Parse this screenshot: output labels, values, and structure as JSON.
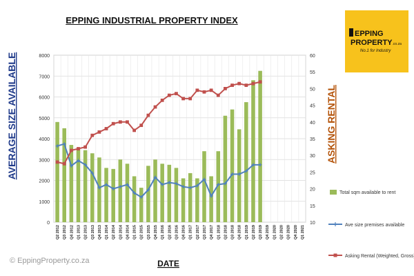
{
  "logo": {
    "line1": "EPPING",
    "line2": "PROPERTY",
    "line2_suffix": ".co.za",
    "tagline": "No.1 for Industry"
  },
  "copyright": "© EppingProperty.co.za",
  "colors": {
    "bars": "#9bbb59",
    "ave_size_line": "#4f81bd",
    "asking_line": "#c0504d",
    "left_axis_title": "#1f3a8a",
    "right_axis_title": "#b45309",
    "logo_bg": "#f7c21c"
  },
  "chart_data": {
    "type": "bar",
    "title": "EPPING INDUSTRIAL PROPERTY INDEX",
    "xlabel": "DATE",
    "ylabel": "AVERAGE SIZE AVAILABLE",
    "y2label": "ASKING RENTAL",
    "ylim": [
      0,
      8000
    ],
    "y2lim": [
      10,
      60
    ],
    "grid": true,
    "legend_placement": "right",
    "categories": [
      "Q2 2012",
      "Q3 2012",
      "Q4 2012",
      "Q1 2013",
      "Q2 2013",
      "Q3 2013",
      "Q4 2013",
      "Q1 2014",
      "Q2 2014",
      "Q3 2014",
      "Q4 2014",
      "Q1 2015",
      "Q2 2015",
      "Q3 2015",
      "Q4 2015",
      "Q1 2016",
      "Q2 2016",
      "Q3 2016",
      "Q4 2016",
      "Q1 2017",
      "Q2 2017",
      "Q3 2017",
      "Q4 2017",
      "Q1 2018",
      "Q2 2018",
      "Q3 2018",
      "Q4 2018",
      "Q1 2019",
      "Q2 2019",
      "Q3 2019",
      "Q4 2019",
      "Q1 2020",
      "Q2 2020",
      "Q3 2020",
      "Q4 2020",
      "Q1 2021"
    ],
    "series": [
      {
        "name": "Total sqm available to rent",
        "type": "bar",
        "axis": "left",
        "values": [
          4800,
          4500,
          3700,
          3500,
          3450,
          3300,
          3100,
          2600,
          2550,
          3000,
          2800,
          2200,
          1650,
          2700,
          3000,
          2800,
          2750,
          2600,
          2100,
          2350,
          2100,
          3400,
          2200,
          3400,
          5100,
          5400,
          4450,
          5750,
          6800,
          7250,
          null,
          null,
          null,
          null,
          null,
          null
        ]
      },
      {
        "name": "Ave size premises available",
        "type": "line",
        "axis": "left",
        "values": [
          3650,
          3750,
          2700,
          2950,
          2750,
          2350,
          1650,
          1800,
          1600,
          1700,
          1800,
          1400,
          1200,
          1550,
          2150,
          1800,
          1900,
          1850,
          1700,
          1650,
          1750,
          2050,
          1250,
          1800,
          1850,
          2300,
          2300,
          2450,
          2750,
          2750,
          null,
          null,
          null,
          null,
          null,
          null
        ]
      },
      {
        "name": "Asking Rental (Weighted, Gross)",
        "type": "line",
        "axis": "right",
        "values": [
          28,
          27.5,
          31.5,
          32,
          32.5,
          36,
          37,
          38,
          39.5,
          40,
          40,
          37.5,
          39,
          42,
          44.5,
          46.5,
          48,
          48.5,
          47,
          47,
          49.5,
          49,
          49.5,
          48,
          50,
          51,
          51.5,
          51,
          51.5,
          52,
          null,
          null,
          null,
          null,
          null,
          null
        ]
      }
    ],
    "yticks": [
      0,
      1000,
      2000,
      3000,
      4000,
      5000,
      6000,
      7000,
      8000
    ],
    "y2ticks": [
      10,
      15,
      20,
      25,
      30,
      35,
      40,
      45,
      50,
      55,
      60
    ]
  }
}
